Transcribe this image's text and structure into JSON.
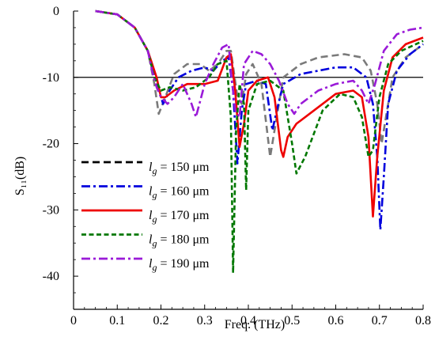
{
  "chart_data": {
    "type": "line",
    "title": "",
    "xlabel": "Freq. (THz)",
    "ylabel": "S₁₁(dB)",
    "xlim": [
      0,
      0.8
    ],
    "ylim": [
      -45,
      0
    ],
    "x_ticks": [
      "0",
      "0.1",
      "0.2",
      "0.3",
      "0.4",
      "0.5",
      "0.6",
      "0.7",
      "0.8"
    ],
    "y_ticks": [
      "0",
      "-10",
      "-20",
      "-30",
      "-40"
    ],
    "reference_line_y": -10,
    "legend_position": "lower-left",
    "series": [
      {
        "name": "lg = 150 μm",
        "legend_sub": "g",
        "legend_rest": "= 150 μm",
        "color": "#7a7a7a",
        "legend_color": "#000000",
        "dash": "dash",
        "points": [
          [
            0.05,
            0
          ],
          [
            0.1,
            -0.5
          ],
          [
            0.14,
            -2.5
          ],
          [
            0.17,
            -6
          ],
          [
            0.185,
            -11
          ],
          [
            0.195,
            -15.5
          ],
          [
            0.21,
            -13
          ],
          [
            0.23,
            -9.5
          ],
          [
            0.26,
            -8
          ],
          [
            0.29,
            -8
          ],
          [
            0.31,
            -9
          ],
          [
            0.33,
            -8
          ],
          [
            0.35,
            -6
          ],
          [
            0.36,
            -6
          ],
          [
            0.375,
            -13
          ],
          [
            0.385,
            -14
          ],
          [
            0.395,
            -9.5
          ],
          [
            0.41,
            -8
          ],
          [
            0.43,
            -11
          ],
          [
            0.45,
            -22
          ],
          [
            0.46,
            -18
          ],
          [
            0.48,
            -10
          ],
          [
            0.52,
            -8
          ],
          [
            0.56,
            -7
          ],
          [
            0.62,
            -6.5
          ],
          [
            0.66,
            -7
          ],
          [
            0.68,
            -9
          ],
          [
            0.695,
            -14
          ],
          [
            0.705,
            -20
          ],
          [
            0.715,
            -16
          ],
          [
            0.73,
            -10
          ],
          [
            0.76,
            -7
          ],
          [
            0.79,
            -5.5
          ],
          [
            0.8,
            -5
          ]
        ]
      },
      {
        "name": "lg = 160 μm",
        "legend_sub": "g",
        "legend_rest": "= 160 μm",
        "color": "#0000dd",
        "legend_color": "#0000dd",
        "dash": "dashdot",
        "points": [
          [
            0.05,
            0
          ],
          [
            0.1,
            -0.5
          ],
          [
            0.14,
            -2.5
          ],
          [
            0.17,
            -6
          ],
          [
            0.19,
            -11
          ],
          [
            0.205,
            -14
          ],
          [
            0.22,
            -12
          ],
          [
            0.24,
            -10
          ],
          [
            0.27,
            -9
          ],
          [
            0.3,
            -8.5
          ],
          [
            0.32,
            -9
          ],
          [
            0.34,
            -7.5
          ],
          [
            0.355,
            -7
          ],
          [
            0.365,
            -12
          ],
          [
            0.375,
            -23
          ],
          [
            0.385,
            -15
          ],
          [
            0.395,
            -11
          ],
          [
            0.42,
            -10.5
          ],
          [
            0.44,
            -11
          ],
          [
            0.455,
            -18
          ],
          [
            0.465,
            -15
          ],
          [
            0.48,
            -11
          ],
          [
            0.52,
            -9.5
          ],
          [
            0.56,
            -9
          ],
          [
            0.6,
            -8.5
          ],
          [
            0.64,
            -8.5
          ],
          [
            0.67,
            -10
          ],
          [
            0.685,
            -14
          ],
          [
            0.695,
            -22
          ],
          [
            0.702,
            -33
          ],
          [
            0.71,
            -25
          ],
          [
            0.72,
            -14
          ],
          [
            0.74,
            -9
          ],
          [
            0.77,
            -6.5
          ],
          [
            0.8,
            -5
          ]
        ]
      },
      {
        "name": "lg = 170 μm",
        "legend_sub": "g",
        "legend_rest": "= 170 μm",
        "color": "#ee0000",
        "legend_color": "#ee0000",
        "dash": "solid",
        "points": [
          [
            0.05,
            0
          ],
          [
            0.1,
            -0.5
          ],
          [
            0.14,
            -2.5
          ],
          [
            0.17,
            -6
          ],
          [
            0.19,
            -10
          ],
          [
            0.2,
            -13
          ],
          [
            0.21,
            -13
          ],
          [
            0.23,
            -12
          ],
          [
            0.26,
            -11
          ],
          [
            0.3,
            -11
          ],
          [
            0.33,
            -10.5
          ],
          [
            0.35,
            -7
          ],
          [
            0.36,
            -6.5
          ],
          [
            0.37,
            -12
          ],
          [
            0.38,
            -20.5
          ],
          [
            0.39,
            -17
          ],
          [
            0.4,
            -12
          ],
          [
            0.42,
            -10.5
          ],
          [
            0.445,
            -10
          ],
          [
            0.46,
            -13
          ],
          [
            0.475,
            -21
          ],
          [
            0.48,
            -22
          ],
          [
            0.49,
            -19
          ],
          [
            0.51,
            -17
          ],
          [
            0.55,
            -15
          ],
          [
            0.6,
            -12.5
          ],
          [
            0.64,
            -12
          ],
          [
            0.66,
            -13
          ],
          [
            0.675,
            -19
          ],
          [
            0.685,
            -31
          ],
          [
            0.695,
            -22
          ],
          [
            0.71,
            -12
          ],
          [
            0.73,
            -7
          ],
          [
            0.76,
            -5
          ],
          [
            0.8,
            -4
          ]
        ]
      },
      {
        "name": "lg = 180 μm",
        "legend_sub": "g",
        "legend_rest": "= 180 μm",
        "color": "#007700",
        "legend_color": "#007700",
        "dash": "shortdash",
        "points": [
          [
            0.05,
            0
          ],
          [
            0.1,
            -0.5
          ],
          [
            0.14,
            -2.5
          ],
          [
            0.17,
            -6
          ],
          [
            0.185,
            -10
          ],
          [
            0.2,
            -12
          ],
          [
            0.22,
            -11.5
          ],
          [
            0.25,
            -12
          ],
          [
            0.28,
            -11.5
          ],
          [
            0.31,
            -10
          ],
          [
            0.33,
            -8
          ],
          [
            0.35,
            -7.5
          ],
          [
            0.36,
            -16
          ],
          [
            0.365,
            -39.5
          ],
          [
            0.372,
            -18
          ],
          [
            0.38,
            -11
          ],
          [
            0.39,
            -14
          ],
          [
            0.395,
            -27
          ],
          [
            0.4,
            -15
          ],
          [
            0.42,
            -11
          ],
          [
            0.45,
            -10.5
          ],
          [
            0.48,
            -12
          ],
          [
            0.5,
            -20
          ],
          [
            0.51,
            -24.5
          ],
          [
            0.53,
            -22
          ],
          [
            0.57,
            -15
          ],
          [
            0.61,
            -12.5
          ],
          [
            0.64,
            -13
          ],
          [
            0.66,
            -16
          ],
          [
            0.675,
            -22
          ],
          [
            0.685,
            -21
          ],
          [
            0.7,
            -13
          ],
          [
            0.72,
            -8
          ],
          [
            0.75,
            -6
          ],
          [
            0.8,
            -4.5
          ]
        ]
      },
      {
        "name": "lg = 190 μm",
        "legend_sub": "g",
        "legend_rest": "= 190 μm",
        "color": "#9a1ad8",
        "legend_color": "#9a1ad8",
        "dash": "dashdot",
        "points": [
          [
            0.05,
            0
          ],
          [
            0.1,
            -0.5
          ],
          [
            0.14,
            -2.5
          ],
          [
            0.17,
            -6
          ],
          [
            0.18,
            -9
          ],
          [
            0.19,
            -11.5
          ],
          [
            0.2,
            -13
          ],
          [
            0.215,
            -14
          ],
          [
            0.23,
            -13
          ],
          [
            0.25,
            -11
          ],
          [
            0.27,
            -14
          ],
          [
            0.28,
            -16
          ],
          [
            0.3,
            -11
          ],
          [
            0.32,
            -8
          ],
          [
            0.34,
            -5.5
          ],
          [
            0.355,
            -5
          ],
          [
            0.36,
            -9
          ],
          [
            0.37,
            -15
          ],
          [
            0.38,
            -16
          ],
          [
            0.385,
            -12
          ],
          [
            0.39,
            -8
          ],
          [
            0.41,
            -6
          ],
          [
            0.43,
            -6.5
          ],
          [
            0.45,
            -8
          ],
          [
            0.47,
            -10.5
          ],
          [
            0.49,
            -14
          ],
          [
            0.505,
            -15.5
          ],
          [
            0.52,
            -14
          ],
          [
            0.56,
            -12
          ],
          [
            0.6,
            -11
          ],
          [
            0.64,
            -10.5
          ],
          [
            0.66,
            -12
          ],
          [
            0.675,
            -14
          ],
          [
            0.69,
            -11
          ],
          [
            0.71,
            -6
          ],
          [
            0.74,
            -3.5
          ],
          [
            0.77,
            -2.8
          ],
          [
            0.8,
            -2.5
          ]
        ]
      }
    ]
  }
}
